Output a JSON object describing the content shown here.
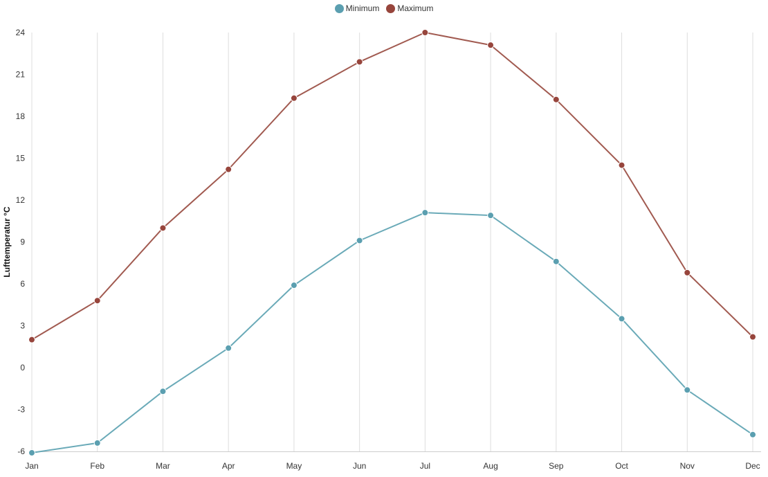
{
  "legend": {
    "min_label": "Minimum",
    "max_label": "Maximum"
  },
  "colors": {
    "min": "#6aaab8",
    "max": "#a15a50",
    "min_dot": "#5b9fb0",
    "max_dot": "#97453c",
    "grid": "#dddddd"
  },
  "chart_data": {
    "type": "line",
    "title": "",
    "xlabel": "",
    "ylabel": "Lufttemperatur °C",
    "categories": [
      "Jan",
      "Feb",
      "Mar",
      "Apr",
      "May",
      "Jun",
      "Jul",
      "Aug",
      "Sep",
      "Oct",
      "Nov",
      "Dec"
    ],
    "yticks": [
      -6,
      -3,
      0,
      3,
      6,
      9,
      12,
      15,
      18,
      21,
      24
    ],
    "ylim": [
      -6,
      24
    ],
    "grid": "vertical",
    "legend_position": "top-center",
    "series": [
      {
        "name": "Minimum",
        "values": [
          -6.1,
          -5.4,
          -1.7,
          1.4,
          5.9,
          9.1,
          11.1,
          10.9,
          7.6,
          3.5,
          -1.6,
          -4.8
        ]
      },
      {
        "name": "Maximum",
        "values": [
          2.0,
          4.8,
          10.0,
          14.2,
          19.3,
          21.9,
          24.0,
          23.1,
          19.2,
          14.5,
          6.8,
          2.2
        ]
      }
    ]
  }
}
